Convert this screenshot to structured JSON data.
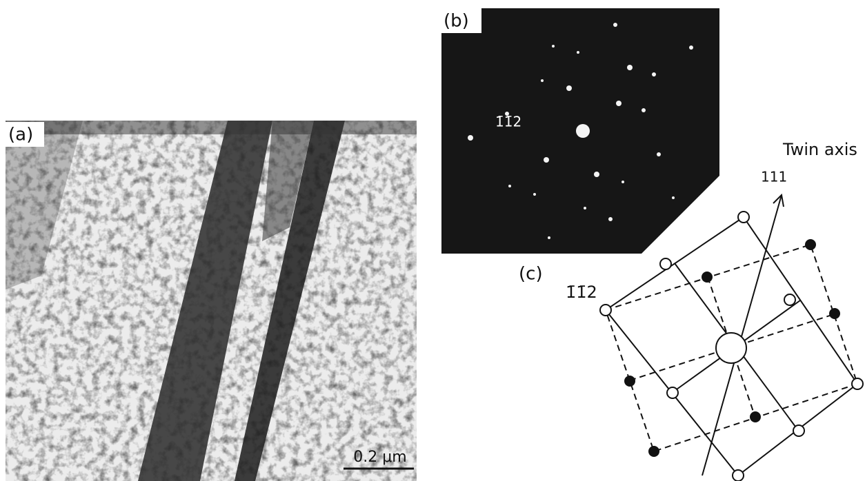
{
  "panels": {
    "a": {
      "label": "(a)",
      "scale_bar": "0.2 μm"
    },
    "b": {
      "label": "(b)",
      "spot_label": "1̄1̄2"
    },
    "c": {
      "label": "(c)",
      "corner_label": "1̄1̄2",
      "axis_title": "Twin axis",
      "axis_index": "111"
    }
  }
}
